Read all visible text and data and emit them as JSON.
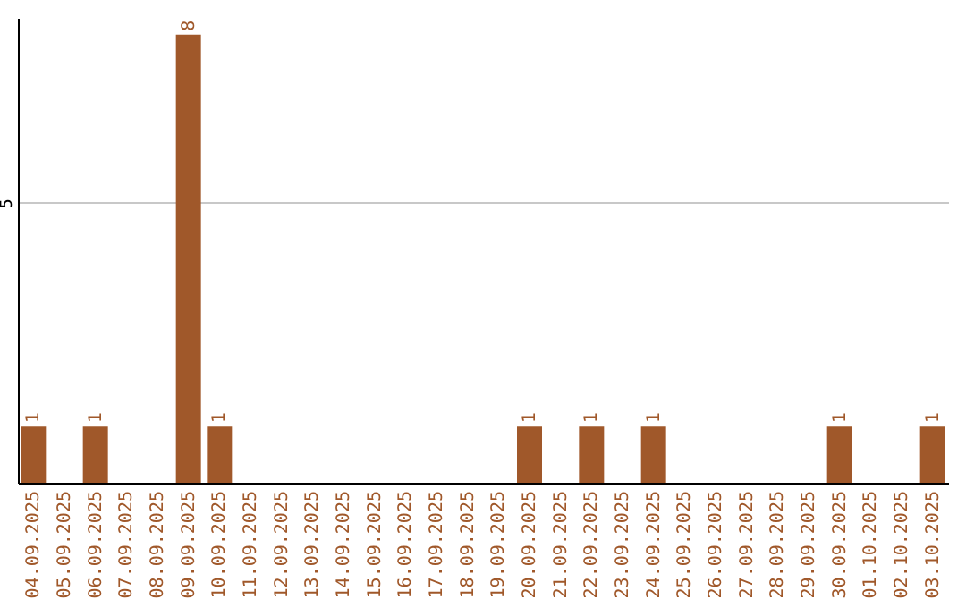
{
  "chart_data": {
    "type": "bar",
    "categories": [
      "04.09.2025",
      "05.09.2025",
      "06.09.2025",
      "07.09.2025",
      "08.09.2025",
      "09.09.2025",
      "10.09.2025",
      "11.09.2025",
      "12.09.2025",
      "13.09.2025",
      "14.09.2025",
      "15.09.2025",
      "16.09.2025",
      "17.09.2025",
      "18.09.2025",
      "19.09.2025",
      "20.09.2025",
      "21.09.2025",
      "22.09.2025",
      "23.09.2025",
      "24.09.2025",
      "25.09.2025",
      "26.09.2025",
      "27.09.2025",
      "28.09.2025",
      "29.09.2025",
      "30.09.2025",
      "01.10.2025",
      "02.10.2025",
      "03.10.2025"
    ],
    "values": [
      1,
      0,
      1,
      0,
      0,
      8,
      1,
      0,
      0,
      0,
      0,
      0,
      0,
      0,
      0,
      0,
      1,
      0,
      1,
      0,
      1,
      0,
      0,
      0,
      0,
      0,
      1,
      0,
      0,
      1
    ],
    "value_labels": [
      "1",
      null,
      "1",
      null,
      null,
      "8",
      "1",
      null,
      null,
      null,
      null,
      null,
      null,
      null,
      null,
      null,
      "1",
      null,
      "1",
      null,
      "1",
      null,
      null,
      null,
      null,
      null,
      "1",
      null,
      null,
      "1"
    ],
    "color": "#a0582a",
    "ylim": [
      0,
      8.3
    ],
    "yticks": [
      5
    ],
    "grid": "y"
  }
}
